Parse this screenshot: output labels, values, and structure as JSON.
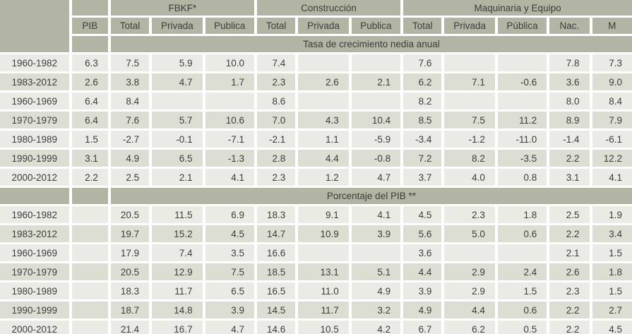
{
  "colors": {
    "header_bg": "#b2b5a3",
    "row_light": "#ebebe6",
    "row_dark": "#dcddd3",
    "separator": "#ffffff",
    "text": "#3c3d3b"
  },
  "chart_data": {
    "type": "table",
    "groups": [
      {
        "label": "FBKF*",
        "span": 3
      },
      {
        "label": "Construcción",
        "span": 3
      },
      {
        "label": "Maquinaria y Equipo",
        "span": 5
      }
    ],
    "columns": [
      "PIB",
      "Total",
      "Privada",
      "Publica",
      "Total",
      "Privada",
      "Publica",
      "Total",
      "Privada",
      "Pública",
      "Nac.",
      "M"
    ],
    "sections": [
      {
        "title": "Tasa de crecimiento nedia anual",
        "rows": [
          {
            "period": "1960-1982",
            "values": [
              "6.3",
              "7.5",
              "5.9",
              "10.0",
              "7.4",
              "",
              "",
              "7.6",
              "",
              "",
              "7.8",
              "7.3"
            ]
          },
          {
            "period": "1983-2012",
            "values": [
              "2.6",
              "3.8",
              "4.7",
              "1.7",
              "2.3",
              "2.6",
              "2.1",
              "6.2",
              "7.1",
              "-0.6",
              "3.6",
              "9.0"
            ]
          },
          {
            "period": "1960-1969",
            "values": [
              "6.4",
              "8.4",
              "",
              "",
              "8.6",
              "",
              "",
              "8.2",
              "",
              "",
              "8.0",
              "8.4"
            ]
          },
          {
            "period": "1970-1979",
            "values": [
              "6.4",
              "7.6",
              "5.7",
              "10.6",
              "7.0",
              "4.3",
              "10.4",
              "8.5",
              "7.5",
              "11.2",
              "8.9",
              "7.9"
            ]
          },
          {
            "period": "1980-1989",
            "values": [
              "1.5",
              "-2.7",
              "-0.1",
              "-7.1",
              "-2.1",
              "1.1",
              "-5.9",
              "-3.4",
              "-1.2",
              "-11.0",
              "-1.4",
              "-6.1"
            ]
          },
          {
            "period": "1990-1999",
            "values": [
              "3.1",
              "4.9",
              "6.5",
              "-1.3",
              "2.8",
              "4.4",
              "-0.8",
              "7.2",
              "8.2",
              "-3.5",
              "2.2",
              "12.2"
            ]
          },
          {
            "period": "2000-2012",
            "values": [
              "2.2",
              "2.5",
              "2.1",
              "4.1",
              "2.3",
              "1.2",
              "4.7",
              "3.7",
              "4.0",
              "0.8",
              "3.1",
              "4.1"
            ]
          }
        ]
      },
      {
        "title": "Porcentaje del PIB **",
        "rows": [
          {
            "period": "1960-1982",
            "values": [
              "",
              "20.5",
              "11.5",
              "6.9",
              "18.3",
              "9.1",
              "4.1",
              "4.5",
              "2.3",
              "1.8",
              "2.5",
              "1.9"
            ]
          },
          {
            "period": "1983-2012",
            "values": [
              "",
              "19.7",
              "15.2",
              "4.5",
              "14.7",
              "10.9",
              "3.9",
              "5.6",
              "5.0",
              "0.6",
              "2.2",
              "3.4"
            ]
          },
          {
            "period": "1960-1969",
            "values": [
              "",
              "17.9",
              "7.4",
              "3.5",
              "16.6",
              "",
              "",
              "3.6",
              "",
              "",
              "2.1",
              "1.5"
            ]
          },
          {
            "period": "1970-1979",
            "values": [
              "",
              "20.5",
              "12.9",
              "7.5",
              "18.5",
              "13.1",
              "5.1",
              "4.4",
              "2.9",
              "2.4",
              "2.6",
              "1.8"
            ]
          },
          {
            "period": "1980-1989",
            "values": [
              "",
              "18.3",
              "11.7",
              "6.5",
              "16.5",
              "11.0",
              "4.9",
              "3.9",
              "2.9",
              "1.5",
              "2.3",
              "1.5"
            ]
          },
          {
            "period": "1990-1999",
            "values": [
              "",
              "18.7",
              "14.8",
              "3.9",
              "14.5",
              "11.7",
              "3.2",
              "4.9",
              "4.4",
              "0.6",
              "2.2",
              "2.7"
            ]
          },
          {
            "period": "2000-2012",
            "values": [
              "",
              "21.4",
              "16.7",
              "4.7",
              "14.6",
              "10.5",
              "4.2",
              "6.7",
              "6.2",
              "0.5",
              "2.2",
              "4.5"
            ]
          }
        ]
      }
    ]
  }
}
